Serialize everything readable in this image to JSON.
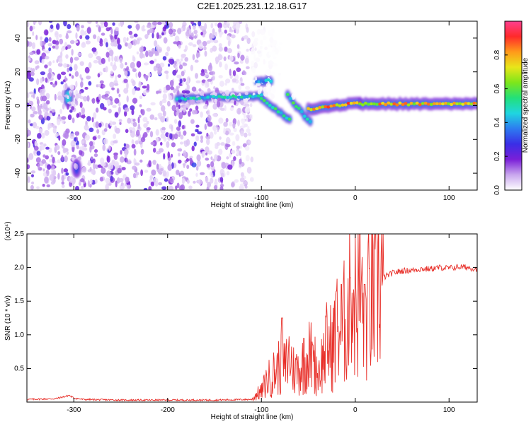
{
  "title": "C2E1.2025.231.12.18.G17",
  "chart_data": [
    {
      "type": "heatmap",
      "xlabel": "Height of straight line (km)",
      "ylabel": "Frequency (Hz)",
      "xlim": [
        -350,
        130
      ],
      "ylim": [
        -50,
        50
      ],
      "xticks": [
        -300,
        -200,
        -100,
        0,
        100
      ],
      "yticks": [
        -40,
        -20,
        0,
        20,
        40
      ],
      "colorbar": {
        "label": "Normalized spectral amplitude",
        "range": [
          0,
          1
        ],
        "ticks": [
          "0.0",
          "0.2",
          "0.4",
          "0.6",
          "0.8"
        ],
        "colors": [
          "#ffffff",
          "#c9a6ee",
          "#7a1fd8",
          "#3a2ee6",
          "#2d7bf0",
          "#1fd6e0",
          "#22e07a",
          "#7de61a",
          "#e8e61a",
          "#ff9a1a",
          "#ff2a2a",
          "#ff3f8f"
        ]
      },
      "features": [
        {
          "kind": "noise",
          "x": [
            -350,
            -110
          ],
          "y": [
            -50,
            50
          ],
          "amplitude": 0.2
        },
        {
          "kind": "noise",
          "x": [
            -110,
            -55
          ],
          "y": [
            5,
            45
          ],
          "amplitude": 0.05
        },
        {
          "kind": "blob",
          "x": -306,
          "y": 5,
          "amplitude": 0.45
        },
        {
          "kind": "blob",
          "x": -297,
          "y": -37,
          "amplitude": 0.3
        },
        {
          "kind": "track",
          "x": [
            -190,
            -100
          ],
          "y": [
            4,
            6
          ],
          "amplitude": 0.5
        },
        {
          "kind": "track",
          "x": [
            -105,
            -90
          ],
          "y": [
            14,
            15
          ],
          "amplitude": 0.45
        },
        {
          "kind": "track",
          "x": [
            -100,
            -70
          ],
          "y": [
            4,
            -8
          ],
          "amplitude": 0.55
        },
        {
          "kind": "track",
          "x": [
            -72,
            -48
          ],
          "y": [
            6,
            -10
          ],
          "amplitude": 0.55
        },
        {
          "kind": "track",
          "x": [
            -50,
            5
          ],
          "y": [
            -2,
            2
          ],
          "amplitude": 0.85
        },
        {
          "kind": "track",
          "x": [
            5,
            130
          ],
          "y": [
            1,
            1
          ],
          "amplitude": 0.8
        }
      ]
    },
    {
      "type": "line",
      "xlabel": "Height of straight line (km)",
      "ylabel": "SNR (10 * v/v)",
      "yscale_label": "(x10⁴)",
      "xlim": [
        -350,
        130
      ],
      "ylim": [
        0,
        2.5
      ],
      "xticks": [
        -300,
        -200,
        -100,
        0,
        100
      ],
      "yticks": [
        "0.5",
        "1.0",
        "1.5",
        "2.0",
        "2.5"
      ],
      "color": "#e8302a",
      "series": [
        {
          "x": [
            -350,
            -320,
            -310,
            -305,
            -300,
            -290,
            -250,
            -200,
            -150,
            -110,
            -105,
            -100,
            -95,
            -90,
            -80,
            -75,
            -70,
            -65,
            -60,
            -55,
            -50,
            -45,
            -40,
            -35,
            -30,
            -25,
            -20,
            -15,
            -10,
            -5,
            0,
            5,
            10,
            15,
            20,
            25,
            30,
            40,
            50,
            60,
            70,
            80,
            90,
            100,
            110,
            120,
            130
          ],
          "y": [
            0.04,
            0.05,
            0.08,
            0.1,
            0.06,
            0.04,
            0.03,
            0.03,
            0.03,
            0.04,
            0.12,
            0.15,
            0.3,
            0.38,
            0.55,
            0.5,
            0.7,
            0.45,
            0.5,
            0.55,
            0.7,
            0.65,
            0.45,
            0.6,
            0.85,
            0.8,
            1.05,
            1.1,
            1.2,
            1.5,
            1.55,
            1.55,
            1.3,
            1.45,
            1.6,
            1.8,
            1.85,
            1.92,
            1.95,
            1.96,
            1.98,
            1.98,
            2.0,
            1.99,
            2.01,
            2.0,
            1.98
          ],
          "spikes": [
            {
              "x": -78,
              "y": 1.25
            },
            {
              "x": -55,
              "y": 0.95
            },
            {
              "x": -45,
              "y": 0.85
            },
            {
              "x": -20,
              "y": 1.65
            },
            {
              "x": -15,
              "y": 1.75
            },
            {
              "x": -5,
              "y": 1.85
            },
            {
              "x": 5,
              "y": 2.5
            },
            {
              "x": 10,
              "y": 1.75
            }
          ]
        }
      ]
    }
  ]
}
